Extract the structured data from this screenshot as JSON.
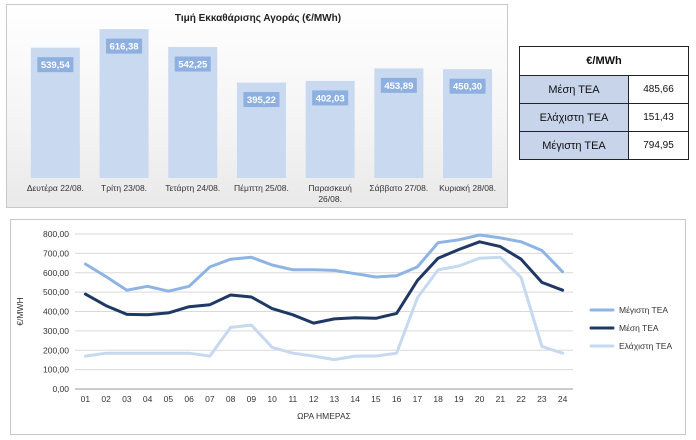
{
  "chart_data": [
    {
      "type": "bar",
      "title": "Τιμή Εκκαθάρισης Αγοράς (€/MWh)",
      "categories": [
        "Δευτέρα 22/08.",
        "Τρίτη 23/08.",
        "Τετάρτη 24/08.",
        "Πέμπτη 25/08.",
        "Παρασκευή 26/08.",
        "Σάββατο 27/08.",
        "Κυριακή 28/08."
      ],
      "values": [
        539.54,
        616.38,
        542.25,
        395.22,
        402.03,
        453.89,
        450.3
      ],
      "data_labels": [
        "539,54",
        "616,38",
        "542,25",
        "395,22",
        "402,03",
        "453,89",
        "450,30"
      ],
      "ylim": [
        0,
        650
      ],
      "bar_color": "#c9d9f0",
      "label_color": "#8eb0e0"
    },
    {
      "type": "table",
      "header": "€/MWh",
      "rows": [
        {
          "label": "Μέση ΤΕΑ",
          "value": "485,66"
        },
        {
          "label": "Ελάχιστη ΤΕΑ",
          "value": "151,43"
        },
        {
          "label": "Μέγιστη ΤΕΑ",
          "value": "794,95"
        }
      ]
    },
    {
      "type": "line",
      "xlabel": "ΩΡΑ ΗΜΕΡΑΣ",
      "ylabel": "€/MWH",
      "x": [
        "01",
        "02",
        "03",
        "04",
        "05",
        "06",
        "07",
        "08",
        "09",
        "10",
        "11",
        "12",
        "13",
        "14",
        "15",
        "16",
        "17",
        "18",
        "19",
        "20",
        "21",
        "22",
        "23",
        "24"
      ],
      "yticks": [
        "0,00",
        "100,00",
        "200,00",
        "300,00",
        "400,00",
        "500,00",
        "600,00",
        "700,00",
        "800,00"
      ],
      "ylim": [
        0,
        800
      ],
      "grid": true,
      "legend": "right",
      "series": [
        {
          "name": "Μέγιστη ΤΕΑ",
          "color": "#8eb4e3",
          "values": [
            645,
            580,
            510,
            530,
            505,
            530,
            630,
            670,
            680,
            640,
            615,
            615,
            612,
            595,
            578,
            585,
            630,
            755,
            770,
            795,
            780,
            760,
            715,
            605
          ]
        },
        {
          "name": "Μέση ΤΕΑ",
          "color": "#1f3864",
          "values": [
            490,
            430,
            385,
            383,
            393,
            425,
            435,
            485,
            475,
            415,
            383,
            340,
            362,
            368,
            365,
            390,
            560,
            675,
            720,
            760,
            735,
            670,
            550,
            510
          ]
        },
        {
          "name": "Ελάχιστη ΤΕΑ",
          "color": "#c6d9f1",
          "values": [
            170,
            185,
            185,
            185,
            185,
            185,
            170,
            318,
            330,
            215,
            185,
            170,
            152,
            170,
            170,
            185,
            470,
            615,
            635,
            675,
            680,
            575,
            220,
            185
          ]
        }
      ]
    }
  ]
}
